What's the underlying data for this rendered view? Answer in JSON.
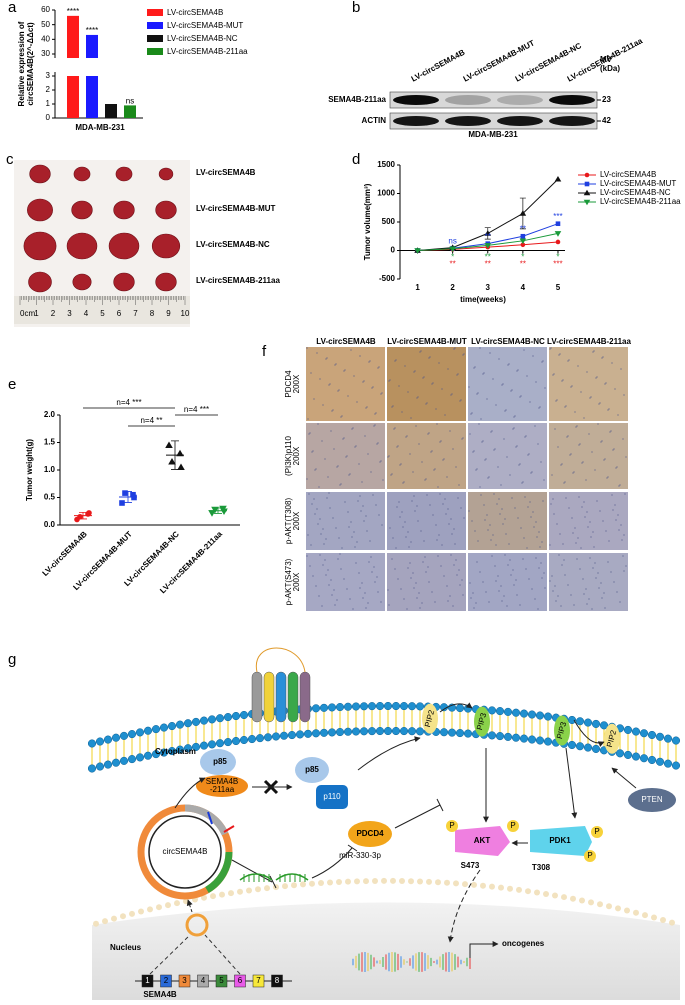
{
  "panel_labels": [
    "a",
    "b",
    "c",
    "d",
    "e",
    "f",
    "g"
  ],
  "panel_a": {
    "y_label_lines": [
      "Relative expression of",
      "circSEMA4B(2^-ΔΔct)"
    ],
    "x_label": "MDA-MB-231",
    "categories": [
      "LV-circSEMA4B",
      "LV-circSEMA4B-MUT",
      "LV-circSEMA4B-NC",
      "LV-circSEMA4B-211aa"
    ],
    "values": [
      56,
      43,
      1.0,
      0.9
    ],
    "colors": [
      "#ff1a1a",
      "#1a1aff",
      "#111111",
      "#1a8a1a"
    ],
    "significance": [
      "****",
      "****",
      null,
      "ns"
    ],
    "yticks_lower": [
      0,
      1,
      2,
      3
    ],
    "yticks_upper": [
      30,
      40,
      50,
      60
    ]
  },
  "panel_b": {
    "lanes": [
      "LV-circSEMA4B",
      "LV-circSEMA4B-MUT",
      "LV-circSEMA4B-NC",
      "LV-circSEMA4B-211aa"
    ],
    "mw_label": "MV",
    "mw_unit": "(kDa)",
    "blots": [
      "SEMA4B-211aa",
      "ACTIN"
    ],
    "mw": [
      "23",
      "42"
    ],
    "cell_line": "MDA-MB-231"
  },
  "panel_c": {
    "rows": [
      "LV-circSEMA4B",
      "LV-circSEMA4B-MUT",
      "LV-circSEMA4B-NC",
      "LV-circSEMA4B-211aa"
    ],
    "ruler": [
      "0cm",
      "1",
      "2",
      "3",
      "4",
      "5",
      "6",
      "7",
      "8",
      "9",
      "10"
    ]
  },
  "panel_d": {
    "type": "line",
    "y_label": "Tumor volume(mm³)",
    "x_label": "time(weeks)",
    "x": [
      1,
      2,
      3,
      4,
      5
    ],
    "xlim": [
      0.5,
      5.2
    ],
    "xticks": [
      1,
      2,
      3,
      4,
      5
    ],
    "ylim": [
      -500,
      1500
    ],
    "yticks": [
      -500,
      0,
      500,
      1000,
      1500
    ],
    "series": [
      {
        "name": "LV-circSEMA4B",
        "color": "#e8191b",
        "marker": "circle",
        "values": [
          0,
          20,
          60,
          100,
          150
        ]
      },
      {
        "name": "LV-circSEMA4B-MUT",
        "color": "#1f3fe0",
        "marker": "square",
        "values": [
          0,
          40,
          120,
          250,
          470
        ]
      },
      {
        "name": "LV-circSEMA4B-NC",
        "color": "#111111",
        "marker": "triangle-up",
        "values": [
          0,
          50,
          300,
          650,
          1250
        ],
        "errors": [
          null,
          null,
          100,
          270,
          null
        ]
      },
      {
        "name": "LV-circSEMA4B-211aa",
        "color": "#1a9a3a",
        "marker": "triangle-down",
        "values": [
          0,
          30,
          90,
          170,
          300
        ]
      }
    ],
    "annotations": [
      {
        "x": 2,
        "text": "ns",
        "series": 1
      },
      {
        "x": 2,
        "text": "*",
        "series": 3
      },
      {
        "x": 2,
        "text": "**",
        "series": 0
      },
      {
        "x": 3,
        "text": "**",
        "series": 1
      },
      {
        "x": 3,
        "text": "**",
        "series": 3
      },
      {
        "x": 3,
        "text": "**",
        "series": 0
      },
      {
        "x": 4,
        "text": "**",
        "series": 1
      },
      {
        "x": 4,
        "text": "*",
        "series": 3
      },
      {
        "x": 4,
        "text": "**",
        "series": 0
      },
      {
        "x": 5,
        "text": "***",
        "series": 1
      },
      {
        "x": 5,
        "text": "*",
        "series": 3
      },
      {
        "x": 5,
        "text": "***",
        "series": 0
      }
    ]
  },
  "panel_e": {
    "type": "scatter",
    "y_label": "Tumor weight(g)",
    "categories": [
      "LV-circSEMA4B",
      "LV-circSEMA4B-MUT",
      "LV-circSEMA4B-NC",
      "LV-circSEMA4B-211aa"
    ],
    "colors": [
      "#e8191b",
      "#1f3fe0",
      "#111111",
      "#1a9a3a"
    ],
    "markers": [
      "circle",
      "square",
      "triangle-up",
      "triangle-down"
    ],
    "points": [
      [
        0.1,
        0.2,
        0.15,
        0.22
      ],
      [
        0.4,
        0.55,
        0.58,
        0.5
      ],
      [
        1.45,
        1.3,
        1.15,
        1.05
      ],
      [
        0.22,
        0.3,
        0.28,
        0.25
      ]
    ],
    "means": [
      0.17,
      0.51,
      1.27,
      0.26
    ],
    "sd": [
      0.06,
      0.1,
      0.26,
      0.05
    ],
    "ylim": [
      0,
      2
    ],
    "yticks": [
      {
        "value": 0,
        "label": "0.0"
      },
      {
        "value": 0.5,
        "label": "0.5"
      },
      {
        "value": 1,
        "label": "1.0"
      },
      {
        "value": 1.5,
        "label": "1.5"
      },
      {
        "value": 2,
        "label": "2.0"
      }
    ],
    "comparisons": [
      {
        "from": 0,
        "to": 2,
        "text": "n=4  ***"
      },
      {
        "from": 1,
        "to": 2,
        "text": "n=4  **"
      },
      {
        "from": 2,
        "to": 3,
        "text": "n=4  ***"
      }
    ]
  },
  "panel_f": {
    "columns": [
      "LV-circSEMA4B",
      "LV-circSEMA4B-MUT",
      "LV-circSEMA4B-NC",
      "LV-circSEMA4B-211aa"
    ],
    "rows": [
      [
        "PDCD4",
        "200X"
      ],
      [
        "(PI3K)p110",
        "200X"
      ],
      [
        "p-AKT(T308)",
        "200X"
      ],
      [
        "p-AKT(S473)",
        "200X"
      ]
    ]
  },
  "panel_g": {
    "cytoplasm": "Cytoplasm",
    "nucleus": "Nucleus",
    "p85_a": "p85",
    "sema_lines": [
      "SEMA4B",
      "-211aa"
    ],
    "p85_b": "p85",
    "p110": "p110",
    "pip2_a": "PIP2",
    "pip3_a": "PIP3",
    "pip3_b": "PIP3",
    "pip2_b": "PIP2",
    "pten": "PTEN",
    "akt": "AKT",
    "pdk1": "PDK1",
    "s473": "S473",
    "t308": "T308",
    "phospho": [
      "P",
      "P",
      "P",
      "P"
    ],
    "circ": "circSEMA4B",
    "mirna": "miR-330-3p",
    "pdcd4": "PDCD4",
    "oncogenes": "oncogenes",
    "gene": "SEMA4B",
    "exons": [
      "1",
      "2",
      "3",
      "4",
      "5",
      "6",
      "7",
      "8"
    ]
  }
}
